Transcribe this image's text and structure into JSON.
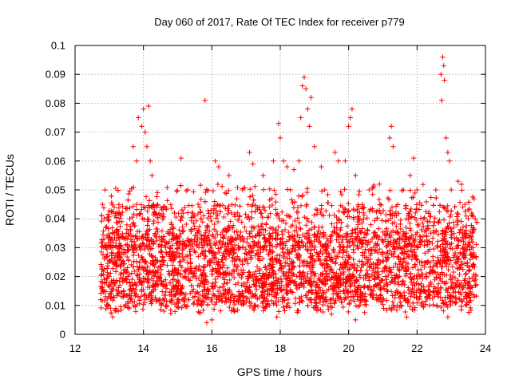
{
  "chart_data": {
    "type": "scatter",
    "title": "Day 060 of 2017, Rate Of TEC Index for receiver p779",
    "xlabel": "GPS time / hours",
    "ylabel": "ROTI / TECUs",
    "xlim": [
      12,
      24
    ],
    "ylim": [
      0,
      0.1
    ],
    "xticks": [
      12,
      14,
      16,
      18,
      20,
      22,
      24
    ],
    "xtick_labels": [
      "12",
      "14",
      "16",
      "18",
      "20",
      "22",
      "24"
    ],
    "yticks": [
      0,
      0.01,
      0.02,
      0.03,
      0.04,
      0.05,
      0.06,
      0.07,
      0.08,
      0.09,
      0.1
    ],
    "ytick_labels": [
      "0",
      "0.01",
      "0.02",
      "0.03",
      "0.04",
      "0.05",
      "0.06",
      "0.07",
      "0.08",
      "0.09",
      "0.1"
    ],
    "grid": true,
    "marker": "+",
    "series_color": "#ff0000",
    "data_range": {
      "x_start": 12.75,
      "x_end": 23.75,
      "typical_low": 0.01,
      "typical_high": 0.035
    },
    "points": [
      [
        12.75,
        0.012
      ],
      [
        12.8,
        0.045
      ],
      [
        12.85,
        0.04
      ],
      [
        12.9,
        0.03
      ],
      [
        13.0,
        0.02
      ],
      [
        13.1,
        0.006
      ],
      [
        13.3,
        0.042
      ],
      [
        13.5,
        0.035
      ],
      [
        13.6,
        0.04
      ],
      [
        13.7,
        0.065
      ],
      [
        13.8,
        0.06
      ],
      [
        13.85,
        0.075
      ],
      [
        13.95,
        0.072
      ],
      [
        14.0,
        0.078
      ],
      [
        14.05,
        0.07
      ],
      [
        14.1,
        0.065
      ],
      [
        14.15,
        0.079
      ],
      [
        14.2,
        0.06
      ],
      [
        14.25,
        0.055
      ],
      [
        14.3,
        0.045
      ],
      [
        15.1,
        0.061
      ],
      [
        15.3,
        0.05
      ],
      [
        15.6,
        0.045
      ],
      [
        15.8,
        0.081
      ],
      [
        15.85,
        0.004
      ],
      [
        16.1,
        0.06
      ],
      [
        16.2,
        0.058
      ],
      [
        16.5,
        0.055
      ],
      [
        16.9,
        0.05
      ],
      [
        17.1,
        0.063
      ],
      [
        17.2,
        0.059
      ],
      [
        17.5,
        0.055
      ],
      [
        17.8,
        0.06
      ],
      [
        17.95,
        0.073
      ],
      [
        18.0,
        0.068
      ],
      [
        18.1,
        0.06
      ],
      [
        18.2,
        0.058
      ],
      [
        18.3,
        0.05
      ],
      [
        18.4,
        0.057
      ],
      [
        18.55,
        0.06
      ],
      [
        18.6,
        0.075
      ],
      [
        18.65,
        0.086
      ],
      [
        18.7,
        0.089
      ],
      [
        18.75,
        0.085
      ],
      [
        18.8,
        0.078
      ],
      [
        18.85,
        0.072
      ],
      [
        18.9,
        0.082
      ],
      [
        19.0,
        0.065
      ],
      [
        19.2,
        0.058
      ],
      [
        19.3,
        0.05
      ],
      [
        19.6,
        0.063
      ],
      [
        19.7,
        0.06
      ],
      [
        19.9,
        0.06
      ],
      [
        20.0,
        0.072
      ],
      [
        20.05,
        0.075
      ],
      [
        20.1,
        0.078
      ],
      [
        20.2,
        0.055
      ],
      [
        20.4,
        0.045
      ],
      [
        20.6,
        0.05
      ],
      [
        20.9,
        0.052
      ],
      [
        21.2,
        0.068
      ],
      [
        21.25,
        0.072
      ],
      [
        21.3,
        0.065
      ],
      [
        21.6,
        0.05
      ],
      [
        21.8,
        0.055
      ],
      [
        21.9,
        0.061
      ],
      [
        22.0,
        0.05
      ],
      [
        22.2,
        0.04
      ],
      [
        22.4,
        0.035
      ],
      [
        22.55,
        0.05
      ],
      [
        22.7,
        0.09
      ],
      [
        22.72,
        0.081
      ],
      [
        22.75,
        0.096
      ],
      [
        22.78,
        0.093
      ],
      [
        22.8,
        0.088
      ],
      [
        22.85,
        0.068
      ],
      [
        22.9,
        0.063
      ],
      [
        22.95,
        0.06
      ],
      [
        23.0,
        0.05
      ],
      [
        23.2,
        0.053
      ],
      [
        23.4,
        0.045
      ],
      [
        23.6,
        0.042
      ],
      [
        23.7,
        0.04
      ],
      [
        16.0,
        0.005
      ],
      [
        17.9,
        0.006
      ],
      [
        19.5,
        0.007
      ],
      [
        20.2,
        0.005
      ],
      [
        21.7,
        0.006
      ],
      [
        22.9,
        0.006
      ],
      [
        14.6,
        0.008
      ]
    ]
  }
}
